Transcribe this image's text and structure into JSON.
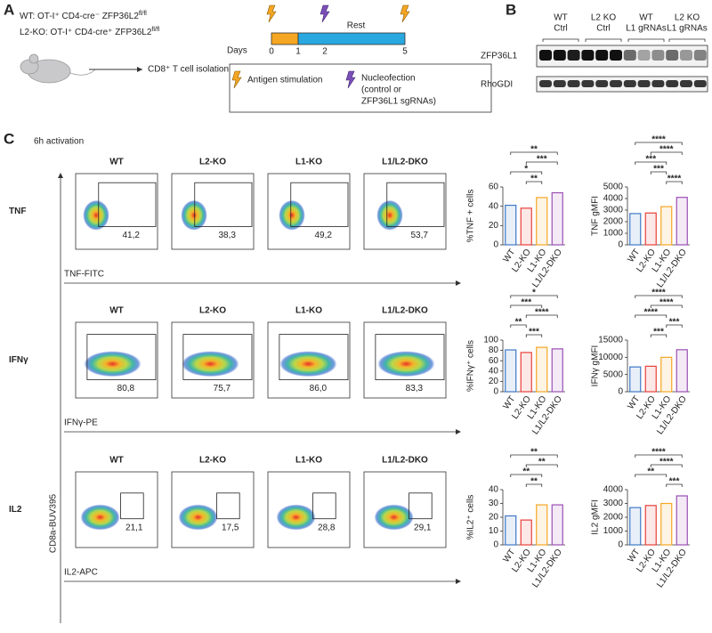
{
  "panel_a": {
    "letter": "A",
    "genotypes": [
      {
        "label": "WT: OT-I⁺ CD4-cre⁻ ZFP36L2",
        "sup": "fl/fl"
      },
      {
        "label": "L2-KO: OT-I⁺ CD4-cre⁺ ZFP36L2",
        "sup": "fl/fl"
      }
    ],
    "isolation": "CD8⁺ T cell isolation",
    "days_label": "Days",
    "days": [
      "0",
      "1",
      "2",
      "5"
    ],
    "rest": "Rest",
    "legend": {
      "stimulation": "Antigen stimulation",
      "nucleofection": [
        "Nucleofection",
        "(control or",
        "ZFP36L1 sgRNAs)"
      ]
    }
  },
  "panel_b": {
    "letter": "B",
    "groups": [
      [
        "WT",
        "Ctrl"
      ],
      [
        "L2 KO",
        "Ctrl"
      ],
      [
        "WT",
        "L1 gRNAs"
      ],
      [
        "L2 KO",
        "L1 gRNAs"
      ]
    ],
    "blots": [
      "ZFP36L1",
      "RhoGDI"
    ]
  },
  "panel_c": {
    "letter": "C",
    "title": "6h activation",
    "y_axis_label": "CD8a-BUV395",
    "rows": [
      {
        "name": "TNF",
        "x_label": "TNF-FITC",
        "plots": [
          {
            "title": "WT",
            "gate": "41,2"
          },
          {
            "title": "L2-KO",
            "gate": "38,3"
          },
          {
            "title": "L1-KO",
            "gate": "49,2"
          },
          {
            "title": "L1/L2-DKO",
            "gate": "53,7"
          }
        ]
      },
      {
        "name": "IFNγ",
        "x_label": "IFNγ-PE",
        "plots": [
          {
            "title": "WT",
            "gate": "80,8"
          },
          {
            "title": "L2-KO",
            "gate": "75,7"
          },
          {
            "title": "L1-KO",
            "gate": "86,0"
          },
          {
            "title": "L1/L2-DKO",
            "gate": "83,3"
          }
        ]
      },
      {
        "name": "IL2",
        "x_label": "IL2-APC",
        "plots": [
          {
            "title": "WT",
            "gate": "21,1"
          },
          {
            "title": "L2-KO",
            "gate": "17,5"
          },
          {
            "title": "L1-KO",
            "gate": "28,8"
          },
          {
            "title": "L1/L2-DKO",
            "gate": "29,1"
          }
        ]
      }
    ]
  },
  "chart_data": [
    {
      "type": "bar",
      "ylabel": "%TNF + cells",
      "categories": [
        "WT",
        "L2-KO",
        "L1-KO",
        "L1/L2-DKO"
      ],
      "values": [
        41,
        38,
        49,
        54
      ],
      "colors": [
        "#3f78c8",
        "#e8403a",
        "#f5a623",
        "#9b4fb5"
      ],
      "ylim": [
        0,
        60
      ],
      "yticks": [
        0,
        20,
        40,
        60
      ],
      "comparisons": [
        {
          "between": [
            "WT",
            "L1/L2-DKO"
          ],
          "label": "**"
        },
        {
          "between": [
            "L2-KO",
            "L1/L2-DKO"
          ],
          "label": "***"
        },
        {
          "between": [
            "WT",
            "L1-KO"
          ],
          "label": "*"
        },
        {
          "between": [
            "L2-KO",
            "L1-KO"
          ],
          "label": "**"
        }
      ]
    },
    {
      "type": "bar",
      "ylabel": "TNF gMFI",
      "categories": [
        "WT",
        "L2-KO",
        "L1-KO",
        "L1/L2-DKO"
      ],
      "values": [
        2700,
        2750,
        3300,
        4100
      ],
      "colors": [
        "#3f78c8",
        "#e8403a",
        "#f5a623",
        "#9b4fb5"
      ],
      "ylim": [
        0,
        5000
      ],
      "yticks": [
        0,
        1000,
        2000,
        3000,
        4000,
        5000
      ],
      "comparisons": [
        {
          "between": [
            "WT",
            "L1/L2-DKO"
          ],
          "label": "****"
        },
        {
          "between": [
            "L2-KO",
            "L1/L2-DKO"
          ],
          "label": "****"
        },
        {
          "between": [
            "WT",
            "L1-KO"
          ],
          "label": "***"
        },
        {
          "between": [
            "L2-KO",
            "L1-KO"
          ],
          "label": "***"
        },
        {
          "between": [
            "L1-KO",
            "L1/L2-DKO"
          ],
          "label": "****"
        }
      ]
    },
    {
      "type": "bar",
      "ylabel": "%IFNγ⁺ cells",
      "categories": [
        "WT",
        "L2-KO",
        "L1-KO",
        "L1/L2-DKO"
      ],
      "values": [
        81,
        76,
        86,
        83
      ],
      "colors": [
        "#3f78c8",
        "#e8403a",
        "#f5a623",
        "#9b4fb5"
      ],
      "ylim": [
        0,
        100
      ],
      "yticks": [
        0,
        20,
        40,
        60,
        80,
        100
      ],
      "comparisons": [
        {
          "between": [
            "WT",
            "L1/L2-DKO"
          ],
          "label": "*"
        },
        {
          "between": [
            "WT",
            "L1-KO"
          ],
          "label": "***"
        },
        {
          "between": [
            "L2-KO",
            "L1/L2-DKO"
          ],
          "label": "****"
        },
        {
          "between": [
            "WT",
            "L2-KO"
          ],
          "label": "**"
        },
        {
          "between": [
            "L2-KO",
            "L1-KO"
          ],
          "label": "***"
        }
      ]
    },
    {
      "type": "bar",
      "ylabel": "IFNγ gMFI",
      "categories": [
        "WT",
        "L2-KO",
        "L1-KO",
        "L1/L2-DKO"
      ],
      "values": [
        7200,
        7400,
        10000,
        12200
      ],
      "colors": [
        "#3f78c8",
        "#e8403a",
        "#f5a623",
        "#9b4fb5"
      ],
      "ylim": [
        0,
        15000
      ],
      "yticks": [
        0,
        5000,
        10000,
        15000
      ],
      "comparisons": [
        {
          "between": [
            "WT",
            "L1/L2-DKO"
          ],
          "label": "****"
        },
        {
          "between": [
            "L2-KO",
            "L1/L2-DKO"
          ],
          "label": "****"
        },
        {
          "between": [
            "WT",
            "L1-KO"
          ],
          "label": "****"
        },
        {
          "between": [
            "L1-KO",
            "L1/L2-DKO"
          ],
          "label": "***"
        },
        {
          "between": [
            "L2-KO",
            "L1-KO"
          ],
          "label": "***"
        }
      ]
    },
    {
      "type": "bar",
      "ylabel": "%IL2⁺ cells",
      "categories": [
        "WT",
        "L2-KO",
        "L1-KO",
        "L1/L2-DKO"
      ],
      "values": [
        21,
        18,
        29,
        29
      ],
      "colors": [
        "#3f78c8",
        "#e8403a",
        "#f5a623",
        "#9b4fb5"
      ],
      "ylim": [
        0,
        40
      ],
      "yticks": [
        0,
        10,
        20,
        30,
        40
      ],
      "comparisons": [
        {
          "between": [
            "WT",
            "L1/L2-DKO"
          ],
          "label": "**"
        },
        {
          "between": [
            "L2-KO",
            "L1/L2-DKO"
          ],
          "label": "**"
        },
        {
          "between": [
            "WT",
            "L1-KO"
          ],
          "label": "**"
        },
        {
          "between": [
            "L2-KO",
            "L1-KO"
          ],
          "label": "**"
        }
      ]
    },
    {
      "type": "bar",
      "ylabel": "IL2 gMFI",
      "categories": [
        "WT",
        "L2-KO",
        "L1-KO",
        "L1/L2-DKO"
      ],
      "values": [
        2700,
        2850,
        3000,
        3550
      ],
      "colors": [
        "#3f78c8",
        "#e8403a",
        "#f5a623",
        "#9b4fb5"
      ],
      "ylim": [
        0,
        4000
      ],
      "yticks": [
        0,
        1000,
        2000,
        3000,
        4000
      ],
      "comparisons": [
        {
          "between": [
            "WT",
            "L1/L2-DKO"
          ],
          "label": "****"
        },
        {
          "between": [
            "L2-KO",
            "L1/L2-DKO"
          ],
          "label": "****"
        },
        {
          "between": [
            "WT",
            "L1-KO"
          ],
          "label": "**"
        },
        {
          "between": [
            "L1-KO",
            "L1/L2-DKO"
          ],
          "label": "***"
        }
      ]
    }
  ]
}
